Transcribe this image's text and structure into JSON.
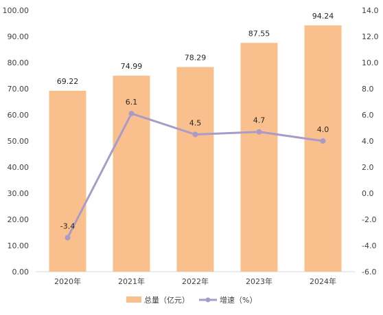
{
  "chart_data": {
    "type": "bar",
    "title": "",
    "categories": [
      "2020年",
      "2021年",
      "2022年",
      "2023年",
      "2024年"
    ],
    "series": [
      {
        "name": "总量（亿元）",
        "type": "bar",
        "axis": "left",
        "color": "#F9C08E",
        "values": [
          69.22,
          74.99,
          78.29,
          87.55,
          94.24
        ],
        "labels": [
          "69.22",
          "74.99",
          "78.29",
          "87.55",
          "94.24"
        ]
      },
      {
        "name": "增速（%）",
        "type": "line",
        "axis": "right",
        "color": "#A99BC9",
        "values": [
          -3.4,
          6.1,
          4.5,
          4.7,
          4.0
        ],
        "labels": [
          "-3.4",
          "6.1",
          "4.5",
          "4.7",
          "4.0"
        ]
      }
    ],
    "y_left": {
      "min": 0,
      "max": 100,
      "step": 10,
      "ticks": [
        "0.00",
        "10.00",
        "20.00",
        "30.00",
        "40.00",
        "50.00",
        "60.00",
        "70.00",
        "80.00",
        "90.00",
        "100.00"
      ]
    },
    "y_right": {
      "min": -6,
      "max": 14,
      "step": 2,
      "ticks": [
        "-6.0",
        "-4.0",
        "-2.0",
        "0.0",
        "2.0",
        "4.0",
        "6.0",
        "8.0",
        "10.0",
        "12.0",
        "14.0"
      ]
    },
    "grid": false,
    "legend": "bottom"
  }
}
